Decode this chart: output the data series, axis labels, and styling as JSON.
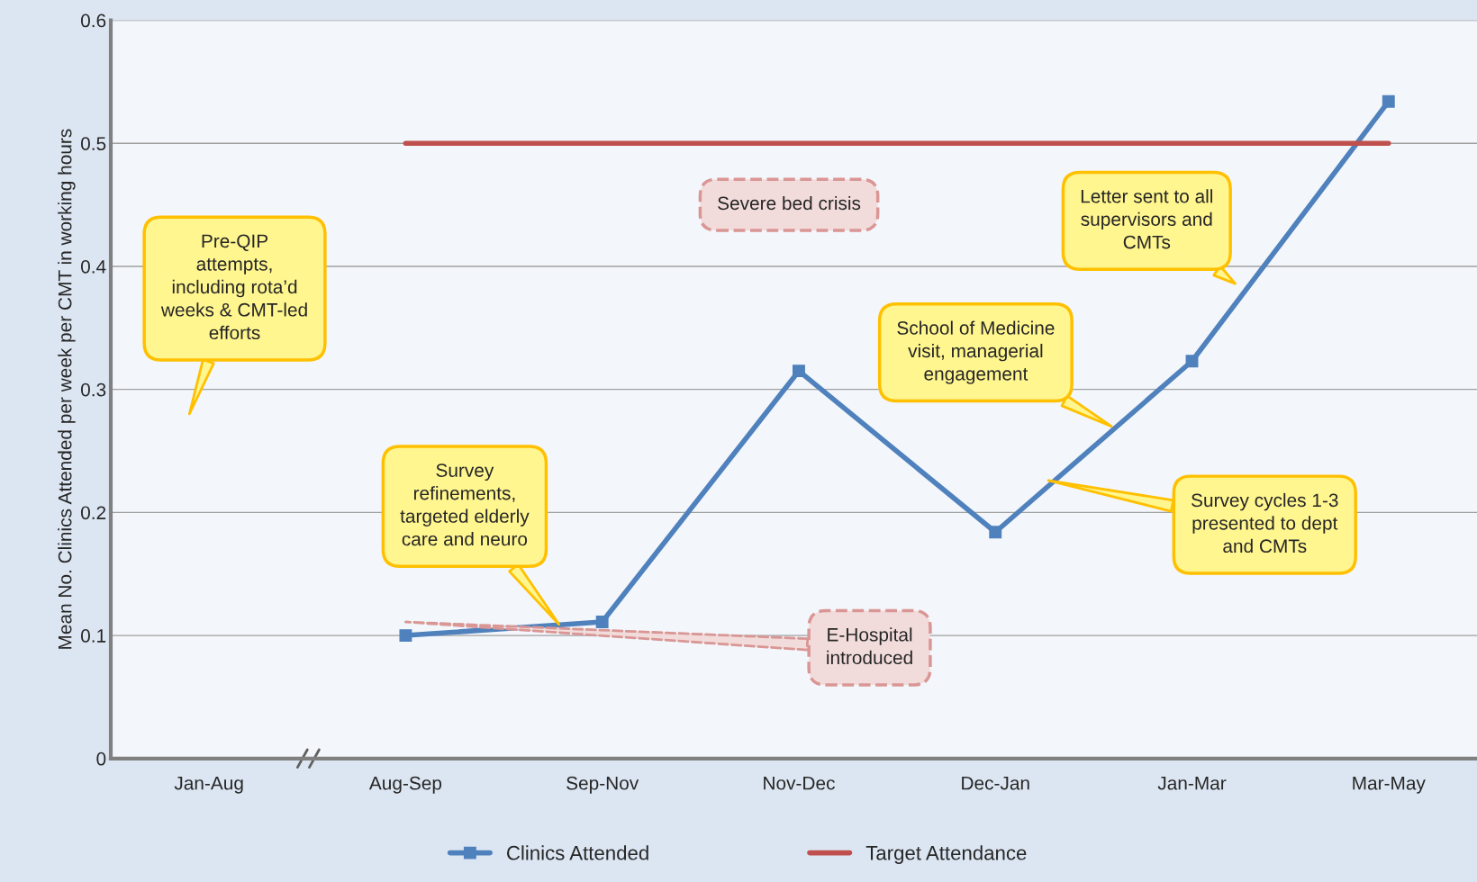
{
  "chart_data": {
    "type": "line",
    "ylabel": "Mean No. Clinics Attended per week per CMT in working hours",
    "categories": [
      "Jan-Aug",
      "Aug-Sep",
      "Sep-Nov",
      "Nov-Dec",
      "Dec-Jan",
      "Jan-Mar",
      "Mar-May"
    ],
    "series": [
      {
        "name": "Clinics Attended",
        "color": "#4f81bd",
        "marker": "square",
        "values": [
          null,
          0.1,
          0.111,
          0.315,
          0.184,
          0.323,
          0.534
        ]
      },
      {
        "name": "Target Attendance",
        "color": "#c0504d",
        "marker": "none",
        "values": [
          null,
          0.5,
          0.5,
          0.5,
          0.5,
          0.5,
          0.5
        ]
      }
    ],
    "ylim": [
      0,
      0.6
    ],
    "yticks": [
      0,
      0.1,
      0.2,
      0.3,
      0.4,
      0.5,
      0.6
    ],
    "grid": "y",
    "legend": "bottom",
    "annotations": [
      "Pre-QIP\nattempts,\nincluding rota’d\nweeks & CMT-led\nefforts",
      "Survey\nrefinements,\ntargeted elderly\ncare and neuro",
      "Severe bed crisis",
      "E-Hospital\nintroduced",
      "School of Medicine\nvisit, managerial\nengagement",
      "Letter sent to all\nsupervisors and\nCMTs",
      "Survey cycles 1-3\npresented to dept\nand CMTs"
    ]
  }
}
